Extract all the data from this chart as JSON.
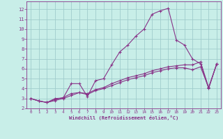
{
  "xlabel": "Windchill (Refroidissement éolien,°C)",
  "xlim": [
    -0.5,
    23.5
  ],
  "ylim": [
    2.0,
    12.8
  ],
  "x_ticks": [
    0,
    1,
    2,
    3,
    4,
    5,
    6,
    7,
    8,
    9,
    10,
    11,
    12,
    13,
    14,
    15,
    16,
    17,
    18,
    19,
    20,
    21,
    22,
    23
  ],
  "y_ticks": [
    2,
    3,
    4,
    5,
    6,
    7,
    8,
    9,
    10,
    11,
    12
  ],
  "background_color": "#c8eee8",
  "grid_color": "#a0cccc",
  "line_color": "#883388",
  "line1_x": [
    0,
    1,
    2,
    3,
    4,
    5,
    6,
    7,
    8,
    9,
    10,
    11,
    12,
    13,
    14,
    15,
    16,
    17,
    18,
    19,
    20,
    21,
    22,
    23
  ],
  "line1_y": [
    3.0,
    2.75,
    2.6,
    3.0,
    3.05,
    4.5,
    4.5,
    3.2,
    4.8,
    5.0,
    6.4,
    7.7,
    8.4,
    9.3,
    10.0,
    11.5,
    11.85,
    12.1,
    8.9,
    8.4,
    7.0,
    6.5,
    4.0,
    6.5
  ],
  "line2_x": [
    0,
    1,
    2,
    3,
    4,
    5,
    6,
    7,
    8,
    9,
    10,
    11,
    12,
    13,
    14,
    15,
    16,
    17,
    18,
    19,
    20,
    21,
    22,
    23
  ],
  "line2_y": [
    3.0,
    2.75,
    2.6,
    2.9,
    3.1,
    3.5,
    3.6,
    3.5,
    3.9,
    4.1,
    4.5,
    4.8,
    5.1,
    5.3,
    5.5,
    5.8,
    6.0,
    6.2,
    6.3,
    6.4,
    6.4,
    6.7,
    4.1,
    6.5
  ],
  "line3_x": [
    0,
    1,
    2,
    3,
    4,
    5,
    6,
    7,
    8,
    9,
    10,
    11,
    12,
    13,
    14,
    15,
    16,
    17,
    18,
    19,
    20,
    21,
    22,
    23
  ],
  "line3_y": [
    3.0,
    2.75,
    2.6,
    2.8,
    3.0,
    3.3,
    3.6,
    3.4,
    3.8,
    4.0,
    4.3,
    4.6,
    4.9,
    5.1,
    5.3,
    5.6,
    5.8,
    6.0,
    6.1,
    6.1,
    5.9,
    6.2,
    4.1,
    6.5
  ]
}
